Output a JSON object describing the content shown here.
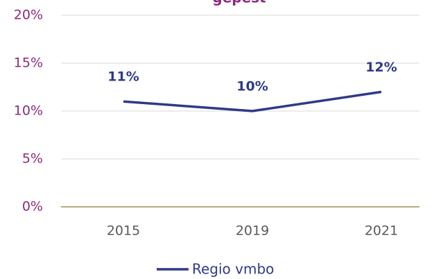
{
  "chart_data": {
    "type": "line",
    "title": "gepest",
    "categories": [
      "2015",
      "2019",
      "2021"
    ],
    "series": [
      {
        "name": "Regio vmbo",
        "color": "#2e3a87",
        "values": [
          11,
          10,
          12
        ],
        "value_labels": [
          "11%",
          "10%",
          "12%"
        ]
      }
    ],
    "ylim": [
      0,
      20
    ],
    "yticks": [
      {
        "value": 0,
        "label": "0%"
      },
      {
        "value": 5,
        "label": "5%"
      },
      {
        "value": 10,
        "label": "10%"
      },
      {
        "value": 15,
        "label": "15%"
      },
      {
        "value": 20,
        "label": "20%"
      }
    ],
    "grid": true,
    "legend": "bottom"
  }
}
